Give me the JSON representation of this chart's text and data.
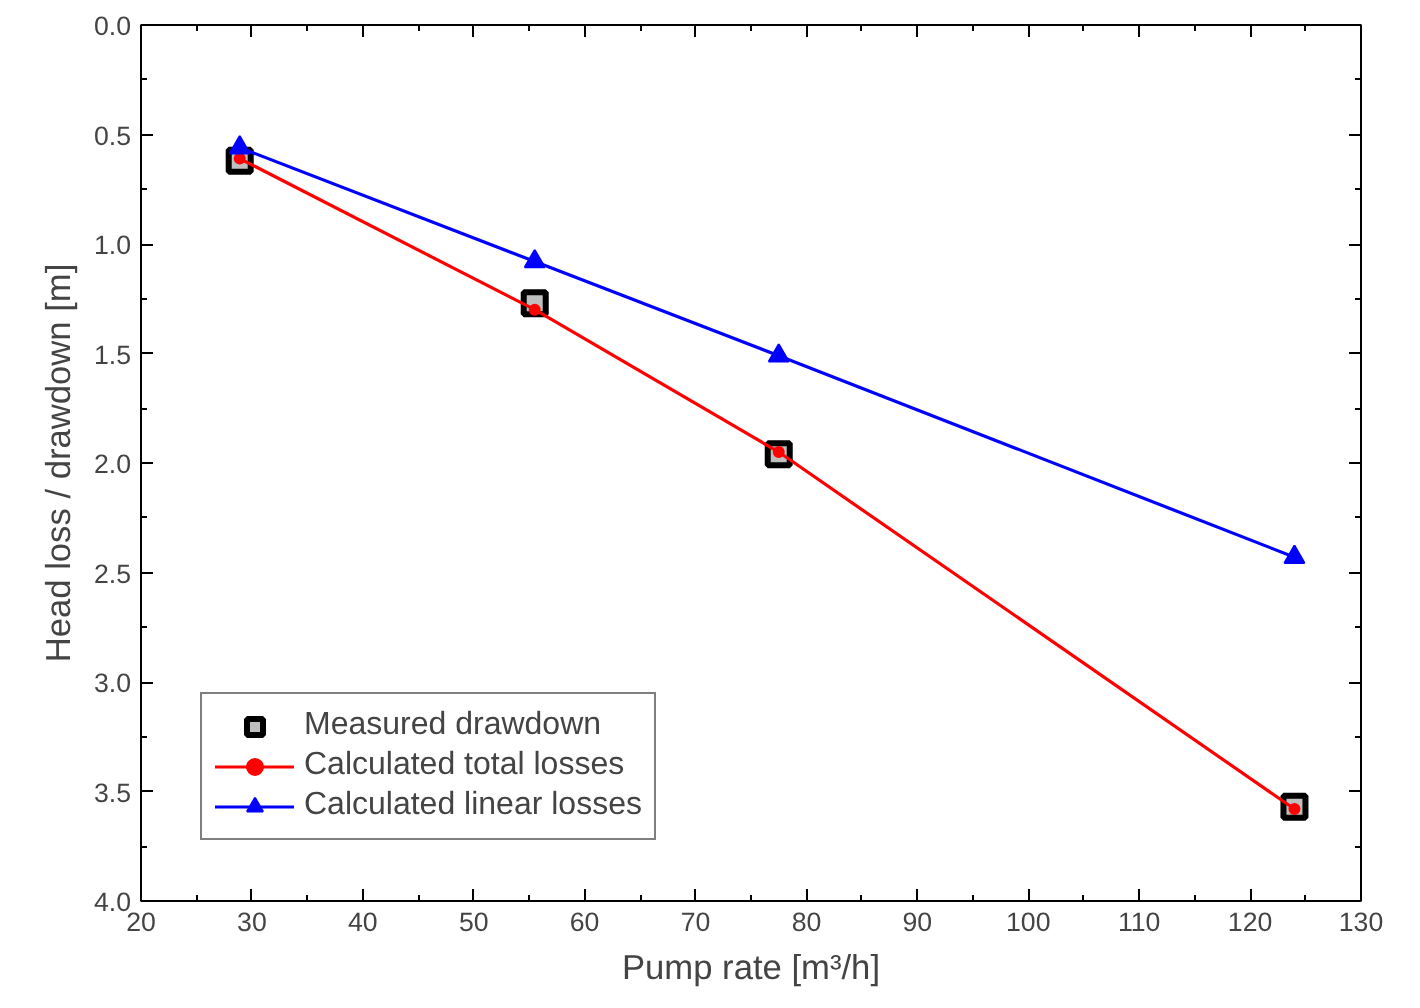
{
  "chart_data": {
    "type": "line",
    "xlabel": "Pump rate [m³/h]",
    "ylabel": "Head loss / drawdown [m]",
    "xlim": [
      20,
      130
    ],
    "xticks": [
      20,
      30,
      40,
      50,
      60,
      70,
      80,
      90,
      100,
      110,
      120,
      130
    ],
    "ylim": [
      4.0,
      0.0
    ],
    "yticks": [
      {
        "value": 0,
        "label": "0.0"
      },
      0.5,
      {
        "value": 1,
        "label": "1.0"
      },
      1.5,
      {
        "value": 2,
        "label": "2.0"
      },
      2.5,
      {
        "value": 3,
        "label": "3.0"
      },
      3.5,
      {
        "value": 4,
        "label": "4.0"
      }
    ],
    "grid": false,
    "legend": "bottom left",
    "series": [
      {
        "name": "Measured drawdown",
        "type": "scatter",
        "marker": "square",
        "color": "#000000",
        "x": [
          28.9,
          55.5,
          77.5,
          124
        ],
        "values": [
          0.62,
          1.27,
          1.96,
          3.57
        ]
      },
      {
        "name": "Calculated total losses",
        "marker": "circle",
        "line_style": "solid",
        "color": "#ff0000",
        "x": [
          28.9,
          55.5,
          77.5,
          124
        ],
        "values": [
          0.61,
          1.3,
          1.95,
          3.58
        ]
      },
      {
        "name": "Calculated linear losses",
        "marker": "triangle",
        "line_style": "solid",
        "color": "#0000ff",
        "x": [
          28.9,
          55.5,
          77.5,
          124
        ],
        "values": [
          0.56,
          1.08,
          1.51,
          2.43
        ]
      }
    ]
  }
}
